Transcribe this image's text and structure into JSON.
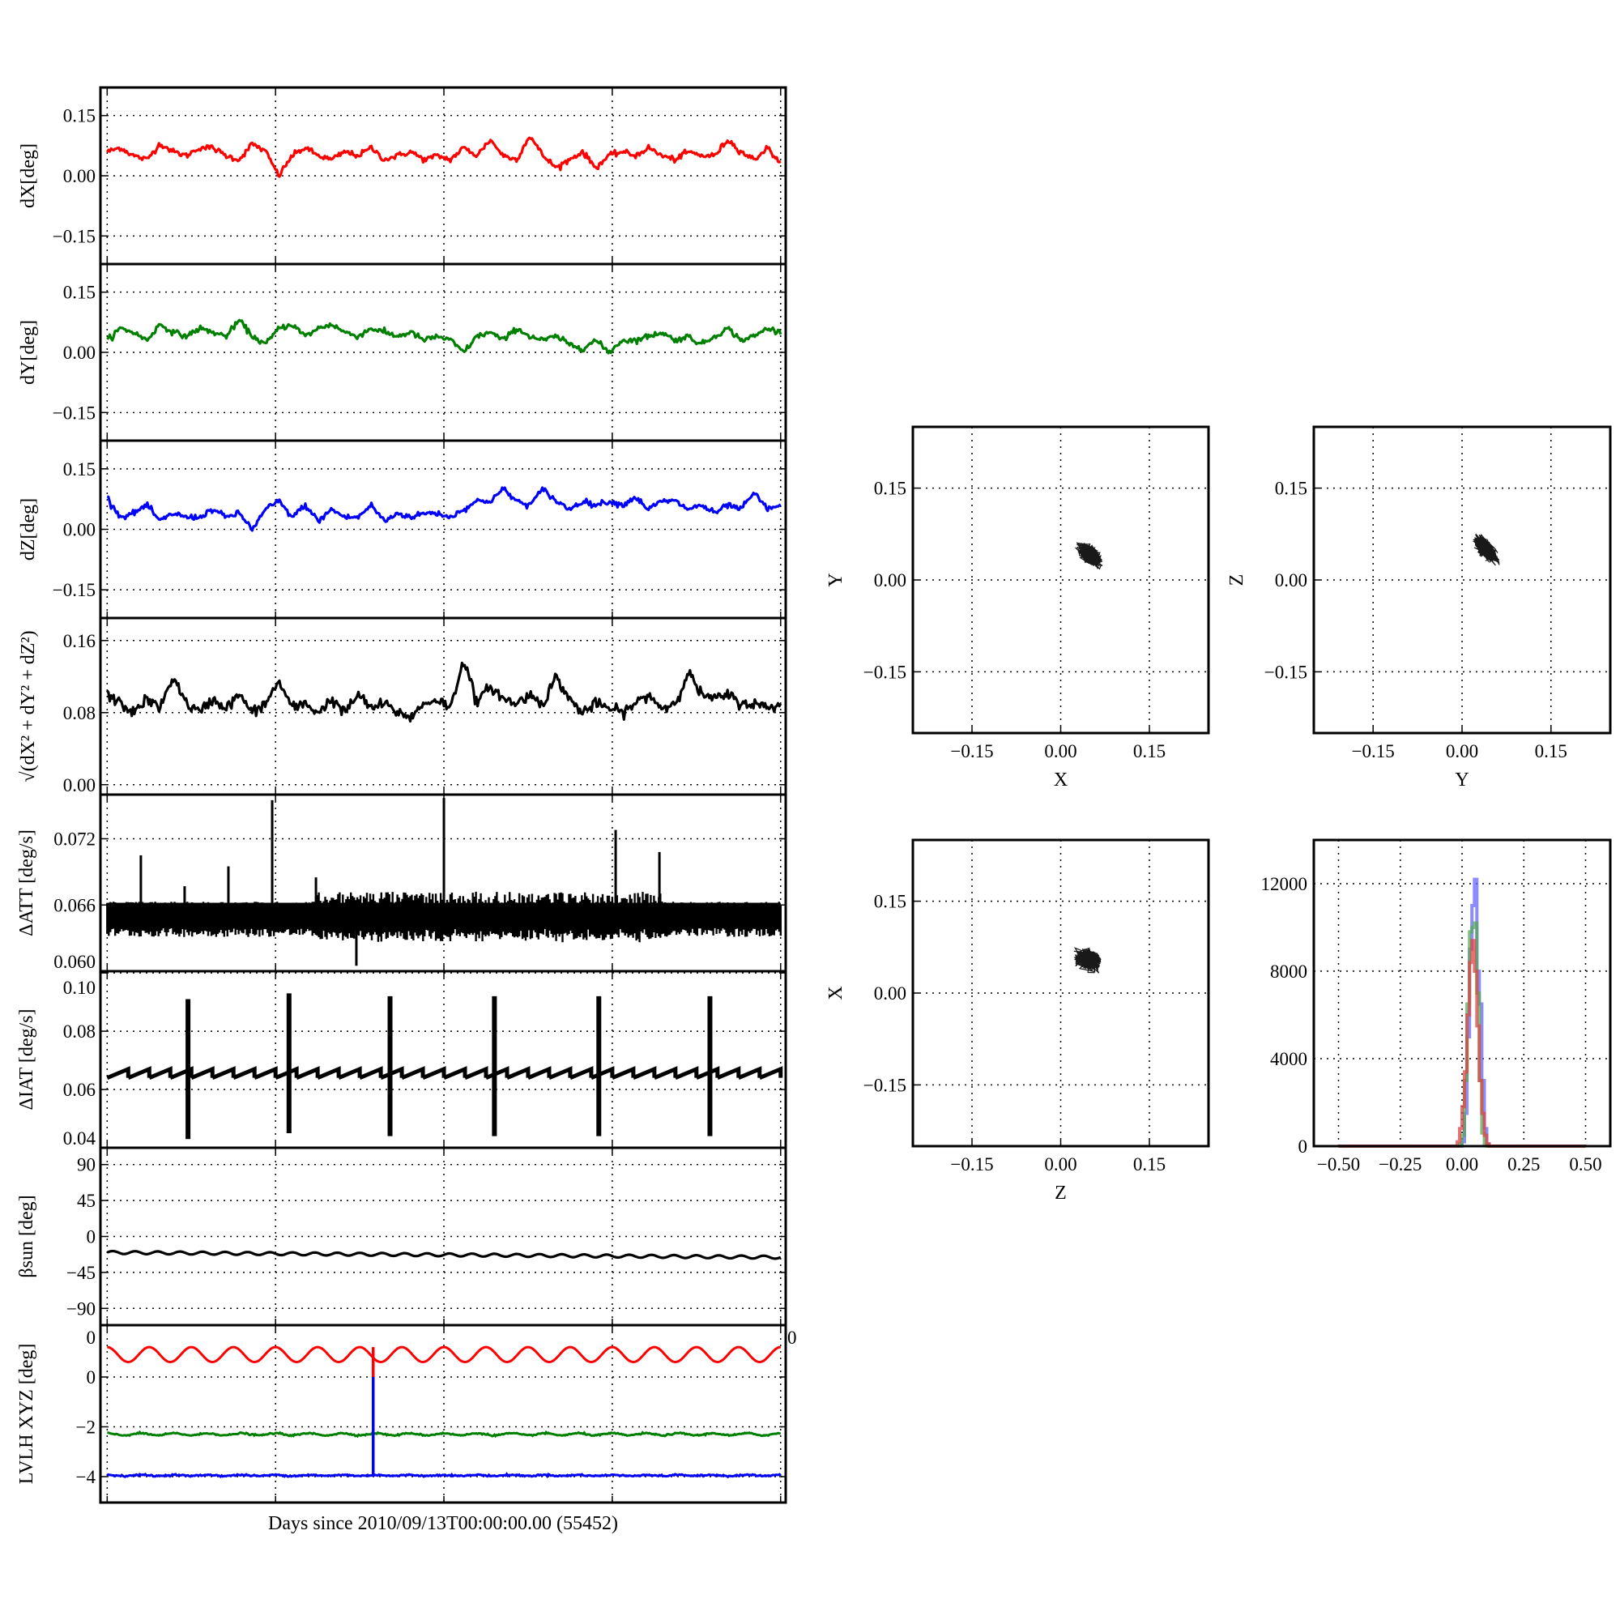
{
  "figure": {
    "xlabel": "Days since 2010/09/13T00:00:00.00 (55452)"
  },
  "chart_data": [
    {
      "type": "line",
      "id": "dx",
      "ylabel": "dX[deg]",
      "ylim": [
        -0.22,
        0.22
      ],
      "yticks": [
        0.15,
        0.0,
        -0.15
      ],
      "ytick_labels": [
        "0.15",
        "0.00",
        "−0.15"
      ],
      "grid": true,
      "series": [
        {
          "name": "dX",
          "color": "#ff0000",
          "values": [
            0.06,
            0.07,
            0.05,
            0.04,
            0.08,
            0.06,
            0.05,
            0.07,
            0.07,
            0.05,
            0.04,
            0.08,
            0.06,
            0.0,
            0.05,
            0.07,
            0.05,
            0.04,
            0.06,
            0.05,
            0.07,
            0.04,
            0.05,
            0.06,
            0.04,
            0.05,
            0.04,
            0.07,
            0.05,
            0.09,
            0.05,
            0.04,
            0.1,
            0.05,
            0.02,
            0.04,
            0.06,
            0.02,
            0.05,
            0.06,
            0.05,
            0.07,
            0.05,
            0.04,
            0.06,
            0.05,
            0.05,
            0.09,
            0.06,
            0.04,
            0.07,
            0.03
          ]
        }
      ]
    },
    {
      "type": "line",
      "id": "dy",
      "ylabel": "dY[deg]",
      "ylim": [
        -0.22,
        0.22
      ],
      "yticks": [
        0.15,
        0.0,
        -0.15
      ],
      "ytick_labels": [
        "0.15",
        "0.00",
        "−0.15"
      ],
      "grid": true,
      "series": [
        {
          "name": "dY",
          "color": "#008000",
          "values": [
            0.03,
            0.06,
            0.05,
            0.03,
            0.07,
            0.05,
            0.04,
            0.06,
            0.05,
            0.04,
            0.08,
            0.04,
            0.02,
            0.06,
            0.07,
            0.04,
            0.06,
            0.07,
            0.05,
            0.04,
            0.06,
            0.05,
            0.04,
            0.05,
            0.03,
            0.04,
            0.03,
            0.0,
            0.04,
            0.05,
            0.03,
            0.06,
            0.04,
            0.03,
            0.04,
            0.02,
            0.01,
            0.03,
            0.0,
            0.03,
            0.03,
            0.04,
            0.05,
            0.03,
            0.04,
            0.02,
            0.04,
            0.06,
            0.03,
            0.04,
            0.06,
            0.05
          ]
        }
      ]
    },
    {
      "type": "line",
      "id": "dz",
      "ylabel": "dZ[deg]",
      "ylim": [
        -0.22,
        0.22
      ],
      "yticks": [
        0.15,
        0.0,
        -0.15
      ],
      "ytick_labels": [
        "0.15",
        "0.00",
        "−0.15"
      ],
      "grid": true,
      "series": [
        {
          "name": "dZ",
          "color": "#0000ff",
          "values": [
            0.08,
            0.03,
            0.04,
            0.06,
            0.02,
            0.04,
            0.03,
            0.03,
            0.05,
            0.03,
            0.04,
            0.0,
            0.05,
            0.07,
            0.03,
            0.06,
            0.02,
            0.05,
            0.03,
            0.03,
            0.06,
            0.02,
            0.04,
            0.03,
            0.04,
            0.04,
            0.03,
            0.05,
            0.07,
            0.07,
            0.1,
            0.07,
            0.06,
            0.1,
            0.07,
            0.05,
            0.07,
            0.06,
            0.07,
            0.06,
            0.08,
            0.05,
            0.07,
            0.07,
            0.05,
            0.06,
            0.04,
            0.06,
            0.05,
            0.09,
            0.05,
            0.06
          ]
        }
      ]
    },
    {
      "type": "line",
      "id": "norm",
      "ylabel": "√(dX² + dY² + dZ²)",
      "ylim": [
        -0.011,
        0.185
      ],
      "yticks": [
        0.16,
        0.08,
        0.0
      ],
      "ytick_labels": [
        "0.16",
        "0.08",
        "0.00"
      ],
      "grid": true,
      "series": [
        {
          "name": "norm",
          "color": "#000000",
          "values": [
            0.1,
            0.09,
            0.08,
            0.095,
            0.085,
            0.12,
            0.09,
            0.08,
            0.095,
            0.085,
            0.1,
            0.08,
            0.09,
            0.115,
            0.085,
            0.09,
            0.08,
            0.095,
            0.08,
            0.1,
            0.085,
            0.09,
            0.08,
            0.075,
            0.09,
            0.095,
            0.085,
            0.14,
            0.09,
            0.11,
            0.095,
            0.09,
            0.1,
            0.09,
            0.12,
            0.095,
            0.08,
            0.09,
            0.085,
            0.08,
            0.09,
            0.1,
            0.085,
            0.09,
            0.125,
            0.1,
            0.095,
            0.1,
            0.09,
            0.09,
            0.085,
            0.09
          ]
        }
      ]
    },
    {
      "type": "line",
      "id": "datt",
      "ylabel": "ΔATT [deg/s]",
      "ylim": [
        0.06,
        0.076
      ],
      "yticks": [
        0.072,
        0.066,
        0.06
      ],
      "ytick_labels": [
        "0.072",
        "0.066",
        "0.060"
      ],
      "grid": true,
      "band": {
        "upper": 0.066,
        "lower": 0.0635,
        "upper_mid": 0.0672,
        "color": "#000000"
      },
      "spikes": [
        {
          "x": 0.2,
          "y": 0.0705
        },
        {
          "x": 0.46,
          "y": 0.0677
        },
        {
          "x": 0.72,
          "y": 0.0695
        },
        {
          "x": 0.98,
          "y": 0.0755
        },
        {
          "x": 1.24,
          "y": 0.0685
        },
        {
          "x": 1.48,
          "y": 0.0605
        },
        {
          "x": 2.0,
          "y": 0.0757
        },
        {
          "x": 3.02,
          "y": 0.0728
        },
        {
          "x": 3.28,
          "y": 0.0708
        }
      ]
    },
    {
      "type": "line",
      "id": "diat",
      "ylabel": "ΔIAT [deg/s]",
      "ylim": [
        0.04,
        0.1006
      ],
      "yticks": [
        0.1,
        0.08,
        0.06,
        0.04
      ],
      "ytick_labels": [
        "0.10",
        "0.08",
        "0.06",
        "0.04"
      ],
      "grid": true,
      "sawtooth": {
        "low": 0.064,
        "high": 0.067,
        "teeth": 32,
        "color": "#000000"
      },
      "spikes": [
        {
          "x": 0.48,
          "low": 0.043,
          "high": 0.091
        },
        {
          "x": 1.08,
          "low": 0.045,
          "high": 0.093
        },
        {
          "x": 1.68,
          "low": 0.044,
          "high": 0.092
        },
        {
          "x": 2.3,
          "low": 0.044,
          "high": 0.092
        },
        {
          "x": 2.92,
          "low": 0.044,
          "high": 0.092
        },
        {
          "x": 3.58,
          "low": 0.044,
          "high": 0.092
        }
      ]
    },
    {
      "type": "line",
      "id": "beta",
      "ylabel": "βsun [deg]",
      "ylim": [
        -111,
        111
      ],
      "yticks": [
        90,
        45,
        0,
        -45,
        -90
      ],
      "ytick_labels": [
        "90",
        "45",
        "0",
        "−45",
        "−90"
      ],
      "grid": true,
      "series": [
        {
          "name": "beta_sun",
          "color": "#000000",
          "start": -20,
          "end": -26,
          "amplitude": 1.8,
          "cycles": 30
        }
      ]
    },
    {
      "type": "line",
      "id": "lvlh",
      "ylabel": "LVLH XYZ [deg]",
      "ylim": [
        -5.04,
        2.08
      ],
      "yticks": [
        0,
        -2,
        -4
      ],
      "ytick_labels": [
        "0",
        "−2",
        "−4"
      ],
      "grid": true,
      "edge_labels": [
        "0",
        "0"
      ],
      "series": [
        {
          "name": "X",
          "color": "#ff0000",
          "mean": 0.9,
          "amplitude": 0.3,
          "cycles": 16
        },
        {
          "name": "Y",
          "color": "#008000",
          "mean": -2.3,
          "amplitude": 0.04,
          "cycles": 20
        },
        {
          "name": "Z",
          "color": "#0000ff",
          "mean": -3.95,
          "amplitude": 0.02,
          "cycles": 20
        }
      ],
      "jump": {
        "x": 1.58,
        "red_from": 1.2,
        "red_to": 0,
        "blue_from": 0,
        "blue_to": -4
      }
    },
    {
      "type": "scatter",
      "id": "xy",
      "xlabel": "X",
      "ylabel": "Y",
      "xlim": [
        -0.25,
        0.25
      ],
      "ylim": [
        -0.25,
        0.25
      ],
      "ticks": [
        -0.15,
        0.0,
        0.15
      ],
      "tick_labels": [
        "−0.15",
        "0.00",
        "0.15"
      ],
      "grid": true,
      "color": "#000000",
      "center": [
        0.05,
        0.04
      ],
      "spread": [
        0.014,
        0.013
      ],
      "correlation": -0.5,
      "n_points": 1600
    },
    {
      "type": "scatter",
      "id": "yz",
      "xlabel": "Y",
      "ylabel": "Z",
      "xlim": [
        -0.25,
        0.25
      ],
      "ylim": [
        -0.25,
        0.25
      ],
      "ticks": [
        -0.15,
        0.0,
        0.15
      ],
      "tick_labels": [
        "−0.15",
        "0.00",
        "0.15"
      ],
      "grid": true,
      "color": "#000000",
      "center": [
        0.04,
        0.05
      ],
      "spread": [
        0.014,
        0.016
      ],
      "correlation": -0.65,
      "n_points": 1600
    },
    {
      "type": "scatter",
      "id": "zx",
      "xlabel": "Z",
      "ylabel": "X",
      "xlim": [
        -0.25,
        0.25
      ],
      "ylim": [
        -0.25,
        0.25
      ],
      "ticks": [
        -0.15,
        0.0,
        0.15
      ],
      "tick_labels": [
        "−0.15",
        "0.00",
        "0.15"
      ],
      "grid": true,
      "color": "#000000",
      "center": [
        0.045,
        0.055
      ],
      "spread": [
        0.016,
        0.012
      ],
      "correlation": -0.2,
      "n_points": 1600
    },
    {
      "type": "bar",
      "id": "hist",
      "subtype": "histogram",
      "xlim": [
        -0.6,
        0.6
      ],
      "ylim": [
        0,
        14000
      ],
      "xticks": [
        -0.5,
        -0.25,
        0.0,
        0.25,
        0.5
      ],
      "xtick_labels": [
        "−0.50",
        "−0.25",
        "0.00",
        "0.25",
        "0.50"
      ],
      "yticks": [
        0,
        4000,
        8000,
        12000
      ],
      "ytick_labels": [
        "0",
        "4000",
        "8000",
        "12000"
      ],
      "grid": true,
      "bin_width": 0.01,
      "series": [
        {
          "name": "Z",
          "color": "#6666ff",
          "bin_start": 0.0,
          "counts": [
            200,
            1500,
            5000,
            9000,
            11000,
            12200,
            8000,
            6500,
            3000,
            800,
            100
          ]
        },
        {
          "name": "Y",
          "color": "#55aa55",
          "bin_start": -0.01,
          "counts": [
            100,
            500,
            3000,
            6500,
            9800,
            10000,
            10200,
            7000,
            3000,
            600,
            100
          ]
        },
        {
          "name": "X",
          "color": "#dd4444",
          "bin_start": -0.02,
          "counts": [
            200,
            800,
            1800,
            3400,
            6000,
            8400,
            9400,
            8000,
            5500,
            3000,
            1500,
            500,
            100
          ]
        }
      ]
    }
  ]
}
